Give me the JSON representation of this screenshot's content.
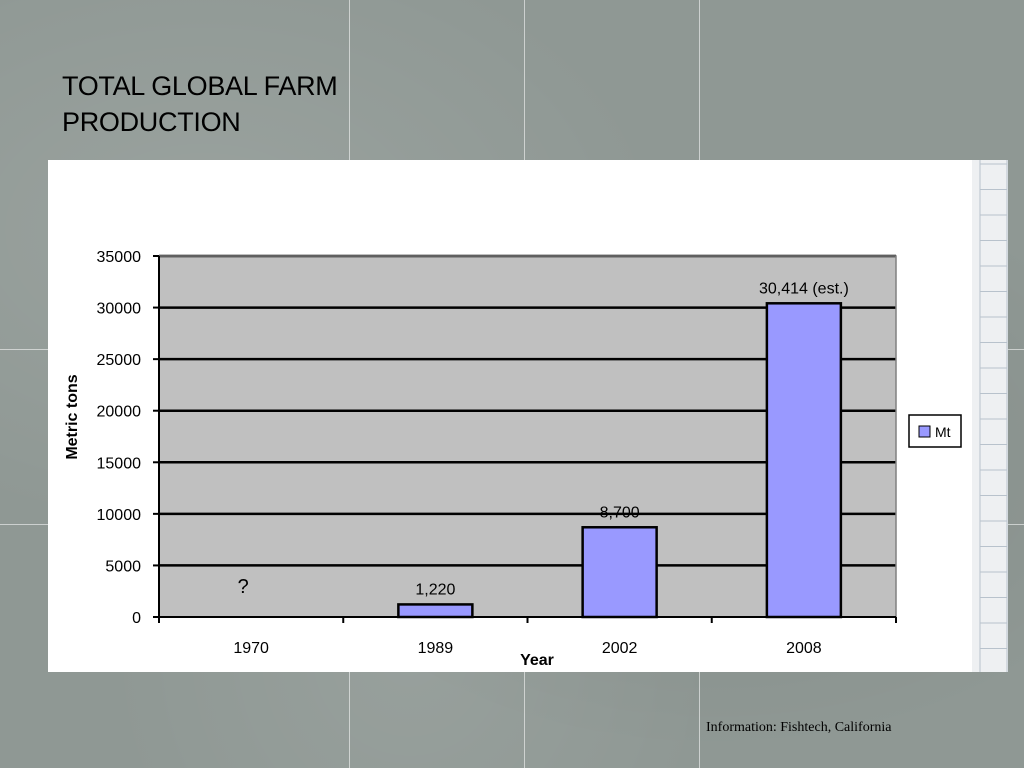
{
  "slide": {
    "title": "TOTAL GLOBAL FARM PRODUCTION",
    "source": "Information: Fishtech, California"
  },
  "chart_data": {
    "type": "bar",
    "categories": [
      "1970",
      "1989",
      "2002",
      "2008"
    ],
    "series": [
      {
        "name": "Mt",
        "values": [
          null,
          1220,
          8700,
          30414
        ]
      }
    ],
    "data_labels": [
      "?",
      "1,220",
      "8,700",
      "30,414 (est.)"
    ],
    "title": "",
    "xlabel": "Year",
    "ylabel": "Metric tons",
    "ylim": [
      0,
      35000
    ],
    "yticks": [
      0,
      5000,
      10000,
      15000,
      20000,
      25000,
      30000,
      35000
    ],
    "grid": true,
    "legend": "right",
    "colors": {
      "bar": "#9999ff",
      "plot_bg": "#c0c0c0",
      "gridline": "#000000"
    }
  }
}
